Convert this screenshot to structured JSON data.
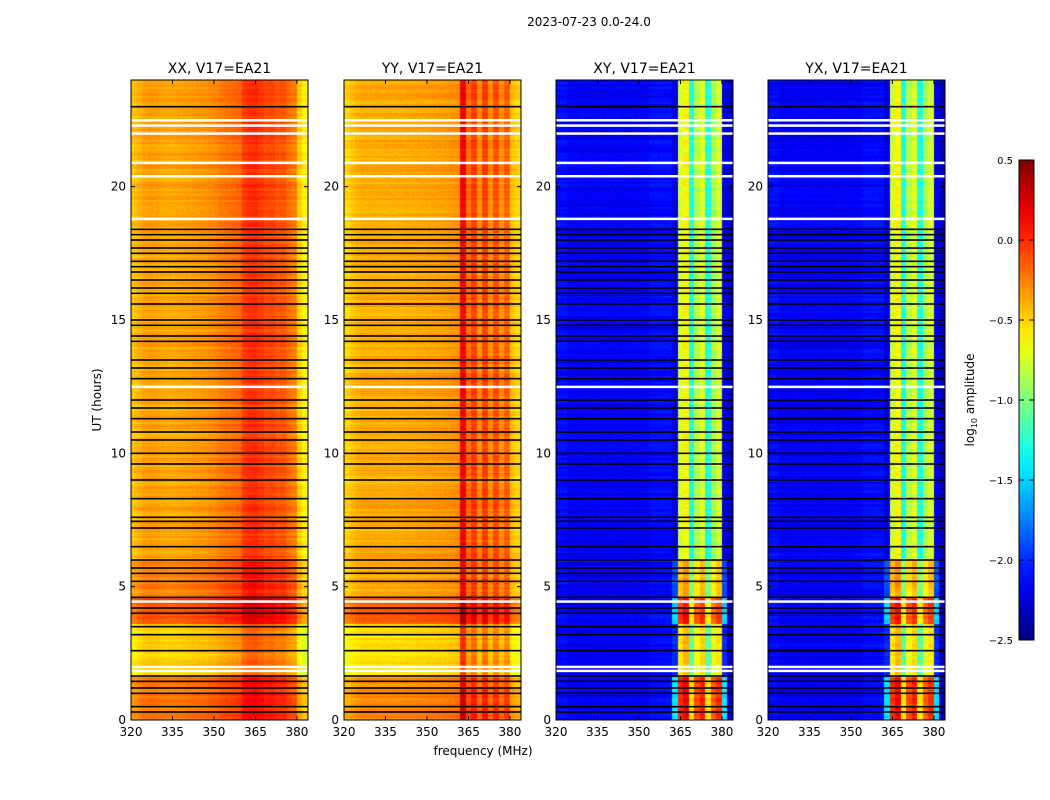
{
  "chart_data": {
    "type": "heatmap",
    "title": "2023-07-23 0.0-24.0",
    "xlabel": "frequency (MHz)",
    "ylabel": "UT (hours)",
    "xlim": [
      320,
      384
    ],
    "ylim": [
      0,
      24
    ],
    "xticks": [
      320,
      335,
      350,
      365,
      380
    ],
    "yticks": [
      0,
      5,
      10,
      15,
      20
    ],
    "colorbar": {
      "label_main": "log",
      "label_sub": "10",
      "label_rest": " amplitude",
      "colormap": "jet",
      "range": [
        -2.5,
        0.5
      ],
      "ticks": [
        "0.5",
        "0.0",
        "−0.5",
        "−1.0",
        "−1.5",
        "−2.0",
        "−2.5"
      ],
      "tick_values": [
        0.5,
        0.0,
        -0.5,
        -1.0,
        -1.5,
        -2.0,
        -2.5
      ]
    },
    "freq_bin_start_mhz": 320,
    "freq_bin_width_mhz": 2,
    "panels": [
      {
        "title": "XX, V17=EA21",
        "freq_profile": [
          -0.45,
          -0.4,
          -0.36,
          -0.34,
          -0.35,
          -0.37,
          -0.38,
          -0.38,
          -0.37,
          -0.36,
          -0.35,
          -0.34,
          -0.33,
          -0.32,
          -0.3,
          -0.28,
          -0.24,
          -0.22,
          -0.2,
          -0.18,
          -0.05,
          -0.02,
          0.0,
          -0.05,
          -0.1,
          -0.08,
          -0.14,
          -0.12,
          -0.2,
          -0.25,
          -0.5,
          -0.6
        ],
        "time_offsets": [
          [
            0,
            1.6,
            0.12
          ],
          [
            1.6,
            3.6,
            -0.15
          ],
          [
            3.6,
            4.6,
            0.25
          ],
          [
            4.6,
            6.0,
            0.1
          ],
          [
            6.0,
            24,
            0.0
          ]
        ],
        "offset_band": [
          320,
          384
        ]
      },
      {
        "title": "YY, V17=EA21",
        "freq_profile": [
          -0.5,
          -0.45,
          -0.4,
          -0.38,
          -0.38,
          -0.38,
          -0.38,
          -0.38,
          -0.38,
          -0.38,
          -0.38,
          -0.37,
          -0.37,
          -0.36,
          -0.36,
          -0.35,
          -0.35,
          -0.34,
          -0.33,
          -0.32,
          -0.3,
          0.15,
          -0.2,
          -0.05,
          -0.3,
          -0.05,
          -0.3,
          -0.1,
          -0.3,
          -0.15,
          -0.45,
          -0.5
        ],
        "time_offsets": [
          [
            0,
            1.6,
            0.1
          ],
          [
            1.6,
            3.6,
            -0.15
          ],
          [
            3.6,
            4.6,
            0.25
          ],
          [
            4.6,
            24,
            0.0
          ]
        ],
        "offset_band": [
          320,
          384
        ]
      },
      {
        "title": "XY, V17=EA21",
        "freq_profile": [
          -2.1,
          -2.1,
          -2.15,
          -2.15,
          -2.15,
          -2.15,
          -2.15,
          -2.15,
          -2.15,
          -2.15,
          -2.15,
          -2.15,
          -2.15,
          -2.15,
          -2.15,
          -2.15,
          -2.15,
          -2.1,
          -2.1,
          -2.1,
          -2.1,
          -2.2,
          -0.75,
          -0.6,
          -1.3,
          -0.85,
          -0.7,
          -1.3,
          -0.9,
          -0.75,
          -2.2,
          -2.3
        ],
        "time_offsets": [
          [
            0,
            1.6,
            0.75
          ],
          [
            1.6,
            3.6,
            0.2
          ],
          [
            3.6,
            4.6,
            0.7
          ],
          [
            4.6,
            6.0,
            0.3
          ],
          [
            6.0,
            24,
            0.0
          ]
        ],
        "offset_band": [
          362,
          382
        ]
      },
      {
        "title": "YX, V17=EA21",
        "freq_profile": [
          -2.1,
          -2.1,
          -2.15,
          -2.15,
          -2.15,
          -2.15,
          -2.15,
          -2.15,
          -2.15,
          -2.15,
          -2.15,
          -2.15,
          -2.15,
          -2.15,
          -2.15,
          -2.15,
          -2.15,
          -2.1,
          -2.1,
          -2.1,
          -2.1,
          -2.2,
          -0.75,
          -0.6,
          -1.3,
          -0.85,
          -0.7,
          -1.3,
          -0.9,
          -0.75,
          -2.2,
          -2.3
        ],
        "time_offsets": [
          [
            0,
            1.6,
            0.75
          ],
          [
            1.6,
            3.6,
            0.2
          ],
          [
            3.6,
            4.6,
            0.7
          ],
          [
            4.6,
            6.0,
            0.3
          ],
          [
            6.0,
            24,
            0.0
          ]
        ],
        "offset_band": [
          362,
          382
        ]
      }
    ],
    "flagged_hours": [
      0.3,
      0.5,
      1.0,
      1.2,
      1.45,
      1.65,
      2.6,
      3.2,
      3.5,
      4.0,
      4.2,
      4.6,
      5.2,
      5.5,
      5.7,
      6.0,
      6.5,
      7.2,
      7.45,
      7.6,
      8.3,
      9.0,
      9.6,
      10.0,
      10.5,
      10.8,
      11.3,
      11.7,
      12.0,
      12.8,
      13.2,
      13.5,
      14.2,
      14.4,
      14.8,
      15.0,
      15.6,
      16.0,
      16.2,
      16.5,
      16.8,
      17.0,
      17.2,
      17.5,
      17.7,
      18.0,
      18.2,
      18.4,
      23.0
    ],
    "gap_hours": [
      1.85,
      2.0,
      4.45,
      12.5,
      18.8,
      20.4,
      20.9,
      22.0,
      22.3,
      22.5
    ]
  }
}
